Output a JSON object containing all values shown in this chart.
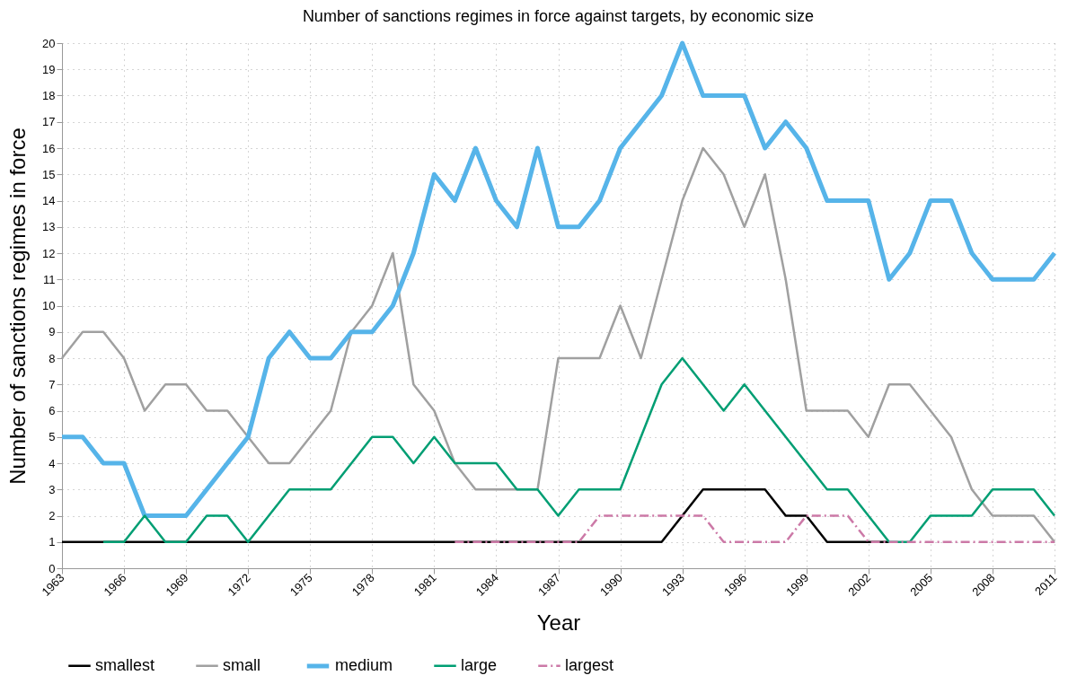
{
  "chart_data": {
    "type": "line",
    "title": "Number of sanctions regimes in force against targets, by economic size",
    "xlabel": "Year",
    "ylabel": "Number of sanctions regimes in force",
    "x": [
      1963,
      1964,
      1965,
      1966,
      1967,
      1968,
      1969,
      1970,
      1971,
      1972,
      1973,
      1974,
      1975,
      1976,
      1977,
      1978,
      1979,
      1980,
      1981,
      1982,
      1983,
      1984,
      1985,
      1986,
      1987,
      1988,
      1989,
      1990,
      1991,
      1992,
      1993,
      1994,
      1995,
      1996,
      1997,
      1998,
      1999,
      2000,
      2001,
      2002,
      2003,
      2004,
      2005,
      2006,
      2007,
      2008,
      2009,
      2010,
      2011
    ],
    "series": [
      {
        "name": "smallest",
        "color": "#000000",
        "values": [
          1,
          1,
          1,
          1,
          1,
          1,
          1,
          1,
          1,
          1,
          1,
          1,
          1,
          1,
          1,
          1,
          1,
          1,
          1,
          1,
          1,
          1,
          1,
          1,
          1,
          1,
          1,
          1,
          1,
          1,
          2,
          3,
          3,
          3,
          3,
          2,
          2,
          1,
          1,
          1,
          1,
          null,
          null,
          null,
          null,
          null,
          null,
          null,
          null
        ]
      },
      {
        "name": "small",
        "color": "#a0a0a0",
        "values": [
          8,
          9,
          9,
          8,
          6,
          7,
          7,
          6,
          6,
          5,
          4,
          4,
          5,
          6,
          9,
          10,
          12,
          7,
          6,
          4,
          3,
          3,
          3,
          3,
          8,
          8,
          8,
          10,
          8,
          11,
          14,
          16,
          15,
          13,
          15,
          11,
          6,
          6,
          6,
          5,
          7,
          7,
          6,
          5,
          3,
          2,
          2,
          2,
          1
        ]
      },
      {
        "name": "medium",
        "color": "#56b4e9",
        "values": [
          5,
          5,
          4,
          4,
          2,
          2,
          2,
          3,
          4,
          5,
          8,
          9,
          8,
          8,
          9,
          9,
          10,
          12,
          15,
          14,
          16,
          14,
          13,
          16,
          13,
          13,
          14,
          16,
          17,
          18,
          20,
          18,
          18,
          18,
          16,
          17,
          16,
          14,
          14,
          14,
          11,
          12,
          14,
          14,
          12,
          11,
          11,
          11,
          12
        ]
      },
      {
        "name": "large",
        "color": "#009e73",
        "values": [
          null,
          null,
          1,
          1,
          2,
          1,
          1,
          2,
          2,
          1,
          2,
          3,
          3,
          3,
          4,
          5,
          5,
          4,
          5,
          4,
          4,
          4,
          3,
          3,
          2,
          3,
          3,
          3,
          5,
          7,
          8,
          7,
          6,
          7,
          6,
          5,
          4,
          3,
          3,
          2,
          1,
          1,
          2,
          2,
          2,
          3,
          3,
          3,
          2
        ]
      },
      {
        "name": "largest",
        "color": "#cc79a7",
        "line_style": "dashed",
        "values": [
          null,
          null,
          null,
          null,
          null,
          null,
          null,
          null,
          null,
          null,
          null,
          null,
          null,
          null,
          null,
          null,
          null,
          null,
          null,
          1,
          1,
          1,
          1,
          1,
          1,
          1,
          2,
          2,
          2,
          2,
          2,
          2,
          1,
          1,
          1,
          1,
          2,
          2,
          2,
          1,
          1,
          1,
          1,
          1,
          1,
          1,
          1,
          1,
          1
        ]
      }
    ],
    "xlim": [
      1963,
      2011
    ],
    "xticks": [
      1963,
      1966,
      1969,
      1972,
      1975,
      1978,
      1981,
      1984,
      1987,
      1990,
      1993,
      1996,
      1999,
      2002,
      2005,
      2008,
      2011
    ],
    "ylim": [
      0,
      20
    ],
    "yticks": [
      0,
      1,
      2,
      3,
      4,
      5,
      6,
      7,
      8,
      9,
      10,
      11,
      12,
      13,
      14,
      15,
      16,
      17,
      18,
      19,
      20
    ],
    "grid": true,
    "legend": "bottom",
    "line_style": "solid",
    "marker": "none"
  }
}
